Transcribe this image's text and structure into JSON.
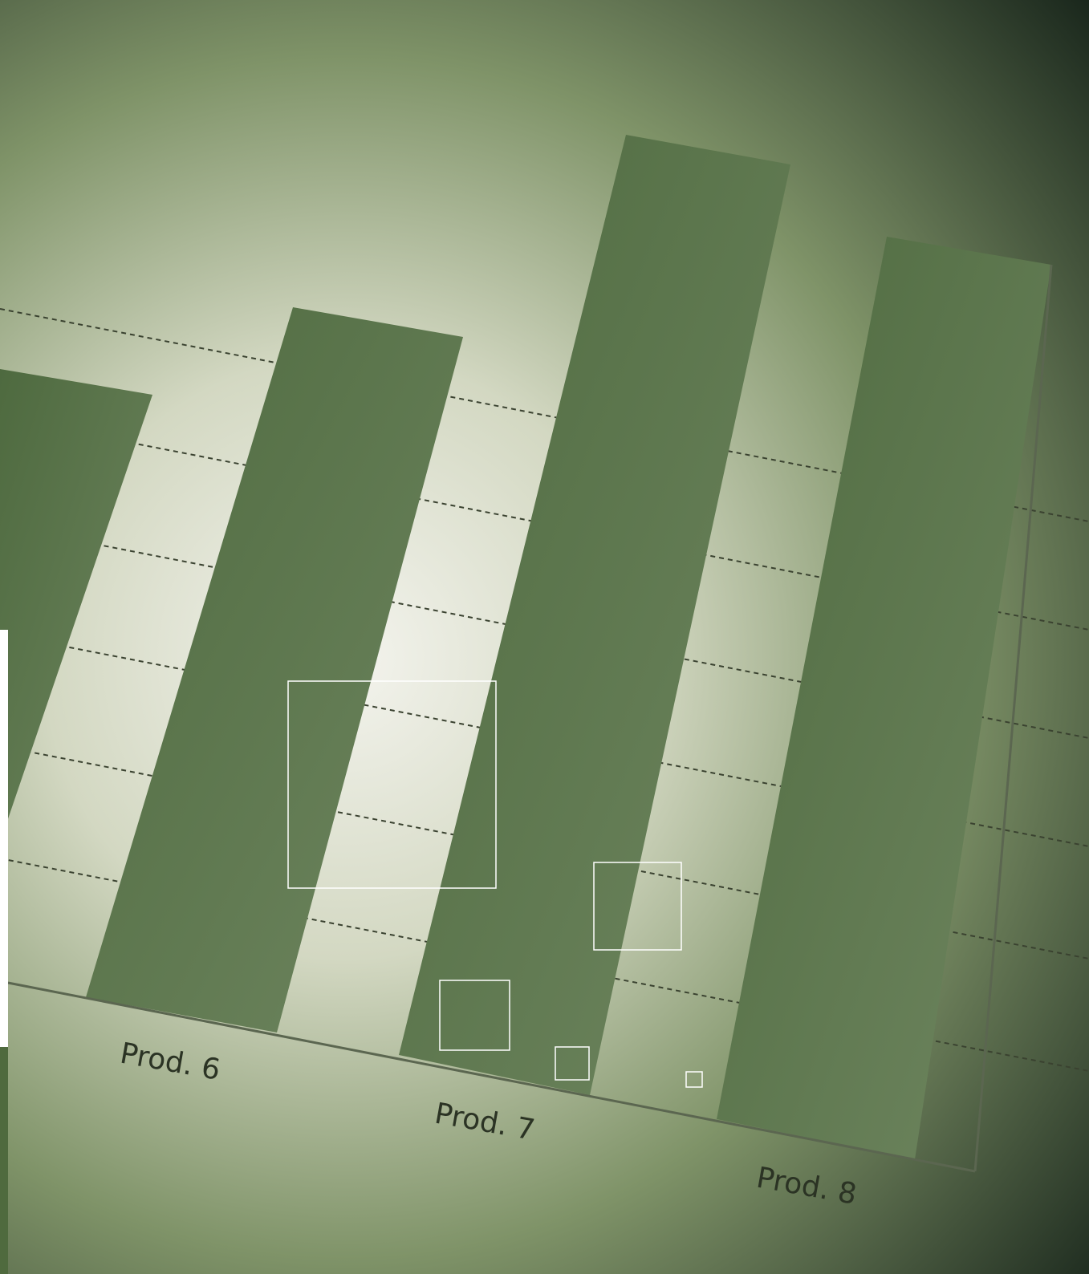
{
  "labels": [
    "Prod. 6",
    "Prod. 7",
    "Prod. 8"
  ]
}
